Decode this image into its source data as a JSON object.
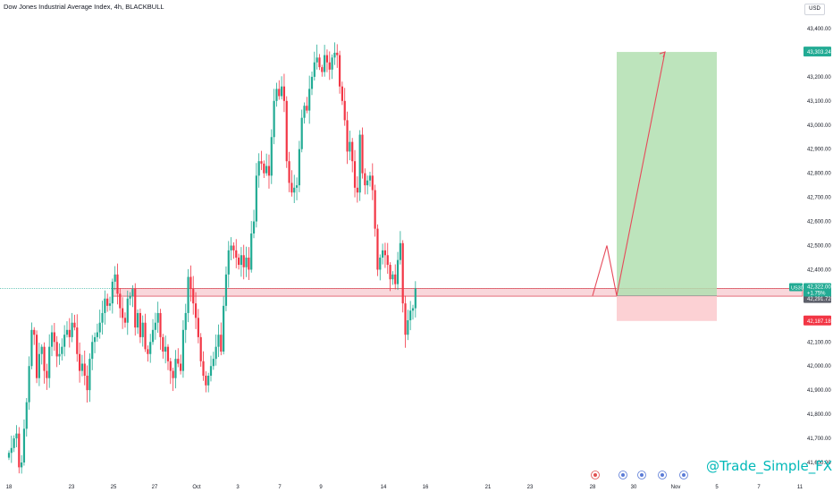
{
  "header": {
    "title": "Dow Jones Industrial Average Index, 4h, BLACKBULL",
    "currency": "USD"
  },
  "watermark": "@Trade_Simple_FX",
  "colors": {
    "up": "#22ab94",
    "down": "#f23645",
    "zone_fill": "#f7c9cf",
    "zone_stroke": "#e0505e",
    "target_fill": "#b2dfb0",
    "stop_fill": "#fbc9cc",
    "projection": "#e64a5a"
  },
  "price_tags": {
    "target": "43,303.24",
    "symbol": "US30",
    "current": "42,322.00",
    "change": "+1.75%",
    "entry": "42,291.72",
    "stop": "42,187.18"
  },
  "chart_data": {
    "type": "candlestick",
    "title": "Dow Jones Industrial Average Index, 4h, BLACKBULL",
    "ylim": [
      41540,
      43500
    ],
    "y_ticks": [
      41600,
      41700,
      41800,
      41900,
      42000,
      42100,
      42200,
      42300,
      42400,
      42500,
      42600,
      42700,
      42800,
      42900,
      43000,
      43100,
      43200,
      43300,
      43400
    ],
    "y_tick_labels": [
      "41,600.00",
      "41,700.00",
      "41,800.00",
      "41,900.00",
      "42,000.00",
      "42,100.00",
      "42,200.00",
      "42,300.00",
      "42,400.00",
      "42,500.00",
      "42,600.00",
      "42,700.00",
      "42,800.00",
      "42,900.00",
      "43,000.00",
      "43,100.00",
      "43,200.00",
      "43,300.00",
      "43,400.00"
    ],
    "x_tick_labels": [
      "18",
      "23",
      "25",
      "27",
      "Oct",
      "3",
      "7",
      "9",
      "14",
      "16",
      "21",
      "23",
      "28",
      "30",
      "Nov",
      "5",
      "7",
      "11"
    ],
    "grid": false,
    "candles_close": [
      41640,
      41660,
      41700,
      41720,
      41580,
      41600,
      41740,
      41850,
      42000,
      42150,
      42130,
      41950,
      42050,
      42080,
      41980,
      41950,
      42080,
      42140,
      42100,
      42040,
      42050,
      42080,
      42130,
      42150,
      42120,
      42180,
      42160,
      42050,
      41980,
      42010,
      41960,
      41900,
      42030,
      42100,
      42120,
      42140,
      42180,
      42220,
      42280,
      42250,
      42260,
      42350,
      42380,
      42300,
      42240,
      42200,
      42180,
      42280,
      42290,
      42320,
      42160,
      42220,
      42120,
      42180,
      42070,
      42050,
      42100,
      42150,
      42180,
      42220,
      42120,
      42060,
      42080,
      42020,
      41980,
      41950,
      42030,
      42010,
      41980,
      42150,
      42220,
      42370,
      42320,
      42260,
      42200,
      42120,
      42020,
      41960,
      41920,
      41960,
      42000,
      42030,
      42080,
      42130,
      42060,
      42250,
      42380,
      42480,
      42500,
      42480,
      42450,
      42420,
      42460,
      42410,
      42450,
      42400,
      42550,
      42600,
      42790,
      42850,
      42840,
      42800,
      42830,
      42790,
      42950,
      43100,
      43150,
      43120,
      43160,
      43100,
      42850,
      42760,
      42720,
      42740,
      42750,
      42900,
      43030,
      43080,
      43060,
      43150,
      43200,
      43260,
      43280,
      43240,
      43220,
      43290,
      43260,
      43230,
      43280,
      43300,
      43290,
      43160,
      43100,
      43020,
      42890,
      42930,
      42850,
      42740,
      42720,
      42960,
      42800,
      42750,
      42770,
      42790,
      42730,
      42570,
      42400,
      42450,
      42480,
      42460,
      42420,
      42360,
      42380,
      42340,
      42440,
      42510,
      42260,
      42130,
      42190,
      42230,
      42240,
      42322
    ],
    "candle_x_ticks_by_label": {
      "18": 10,
      "23": 593,
      "25": 127,
      "27": 173,
      "Oct": 220,
      "3": 266,
      "7": 313,
      "9": 359,
      "14": 429,
      "16": 476,
      "21": 546,
      "28": 663,
      "30": 709,
      "Nov": 756,
      "5": 802,
      "7b": 849,
      "11": 895
    },
    "support_zone": [
      42290,
      42322
    ],
    "position": {
      "entry": 42291.72,
      "target": 43303.24,
      "stop": 42187.18
    },
    "projection_path": [
      42291.72,
      42500,
      42291.72,
      43303.24
    ]
  }
}
